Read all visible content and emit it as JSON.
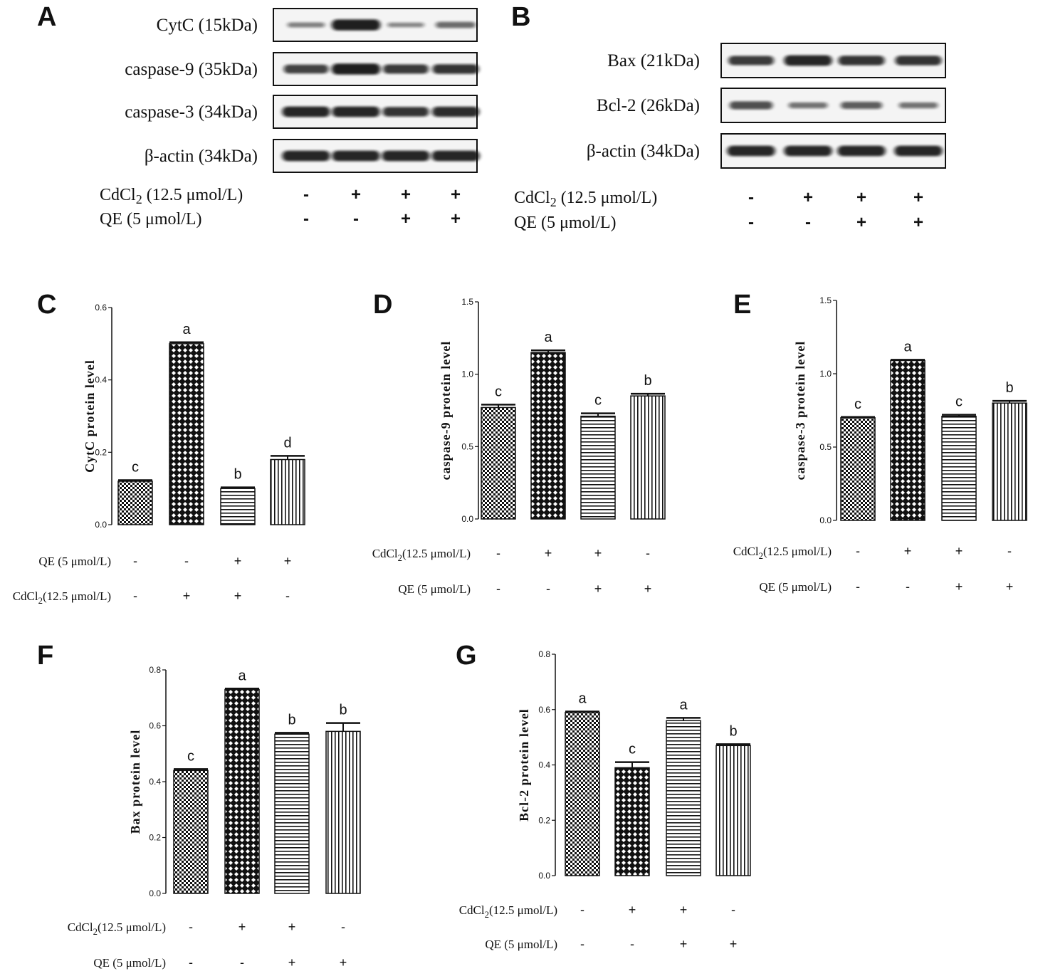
{
  "panel_a": {
    "letter": "A",
    "blots": [
      {
        "label": "CytC (15kDa)",
        "band": [
          0.25,
          0.95,
          0.2,
          0.4
        ]
      },
      {
        "label": "caspase-9 (35kDa)",
        "band": [
          0.7,
          0.95,
          0.75,
          0.8
        ]
      },
      {
        "label": "caspase-3 (34kDa)",
        "band": [
          0.9,
          0.9,
          0.8,
          0.85
        ]
      },
      {
        "label": "β-actin (34kDa)",
        "band": [
          0.9,
          0.9,
          0.9,
          0.9
        ]
      }
    ],
    "conditions": [
      {
        "label": "CdCl",
        "subscript": "2",
        "suffix": " (12.5 μmol/L)",
        "signs": [
          "-",
          "+",
          "+",
          "+"
        ]
      },
      {
        "label": "QE (5 μmol/L)",
        "subscript": "",
        "suffix": "",
        "signs": [
          "-",
          "-",
          "+",
          "+"
        ]
      }
    ]
  },
  "panel_b": {
    "letter": "B",
    "blots": [
      {
        "label": "Bax (21kDa)",
        "band": [
          0.75,
          0.9,
          0.8,
          0.8
        ]
      },
      {
        "label": "Bcl-2 (26kDa)",
        "band": [
          0.6,
          0.35,
          0.5,
          0.35
        ]
      },
      {
        "label": "β-actin (34kDa)",
        "band": [
          0.9,
          0.9,
          0.9,
          0.9
        ]
      }
    ],
    "conditions": [
      {
        "label": "CdCl",
        "subscript": "2",
        "suffix": " (12.5 μmol/L)",
        "signs": [
          "-",
          "+",
          "+",
          "+"
        ]
      },
      {
        "label": "QE (5 μmol/L)",
        "subscript": "",
        "suffix": "",
        "signs": [
          "-",
          "-",
          "+",
          "+"
        ]
      }
    ]
  },
  "chart_data": [
    {
      "panel": "C",
      "type": "bar",
      "ylabel": "CytC protein level",
      "ylim": [
        0,
        0.6
      ],
      "yticks": [
        "0.0",
        "0.2",
        "0.4",
        "0.6"
      ],
      "values": [
        0.12,
        0.5,
        0.1,
        0.18
      ],
      "errors": [
        0.003,
        0.004,
        0.003,
        0.01
      ],
      "letters": [
        "c",
        "a",
        "b",
        "d"
      ],
      "patterns": [
        "pat-checker",
        "pat-diamond",
        "pat-hlines",
        "pat-vlines"
      ],
      "conditions": [
        {
          "label": "QE (5 μmol/L)",
          "subscript": "",
          "suffix": "",
          "signs": [
            "-",
            "-",
            "+",
            "+"
          ]
        },
        {
          "label": "CdCl",
          "subscript": "2",
          "suffix": "(12.5 μmol/L)",
          "signs": [
            "-",
            "+",
            "+",
            "-"
          ]
        }
      ]
    },
    {
      "panel": "D",
      "type": "bar",
      "ylabel": "caspase-9 protein level",
      "ylim": [
        0,
        1.5
      ],
      "yticks": [
        "0.0",
        "0.5",
        "1.0",
        "1.5"
      ],
      "values": [
        0.77,
        1.15,
        0.71,
        0.85
      ],
      "errors": [
        0.02,
        0.015,
        0.02,
        0.015
      ],
      "letters": [
        "c",
        "a",
        "c",
        "b"
      ],
      "patterns": [
        "pat-checker",
        "pat-diamond",
        "pat-hlines",
        "pat-vlines"
      ],
      "conditions": [
        {
          "label": "CdCl",
          "subscript": "2",
          "suffix": "(12.5 μmol/L)",
          "signs": [
            "-",
            "+",
            "+",
            "-"
          ]
        },
        {
          "label": "QE (5 μmol/L)",
          "subscript": "",
          "suffix": "",
          "signs": [
            "-",
            "-",
            "+",
            "+"
          ]
        }
      ]
    },
    {
      "panel": "E",
      "type": "bar",
      "ylabel": "caspase-3 protein level",
      "ylim": [
        0,
        1.5
      ],
      "yticks": [
        "0.0",
        "0.5",
        "1.0",
        "1.5"
      ],
      "values": [
        0.7,
        1.09,
        0.71,
        0.8
      ],
      "errors": [
        0.005,
        0.005,
        0.01,
        0.015
      ],
      "letters": [
        "c",
        "a",
        "c",
        "b"
      ],
      "patterns": [
        "pat-checker",
        "pat-diamond",
        "pat-hlines",
        "pat-vlines"
      ],
      "conditions": [
        {
          "label": "CdCl",
          "subscript": "2",
          "suffix": "(12.5 μmol/L)",
          "signs": [
            "-",
            "+",
            "+",
            "-"
          ]
        },
        {
          "label": "QE (5 μmol/L)",
          "subscript": "",
          "suffix": "",
          "signs": [
            "-",
            "-",
            "+",
            "+"
          ]
        }
      ]
    },
    {
      "panel": "F",
      "type": "bar",
      "ylabel": "Bax protein level",
      "ylim": [
        0,
        0.8
      ],
      "yticks": [
        "0.0",
        "0.2",
        "0.4",
        "0.6",
        "0.8"
      ],
      "values": [
        0.44,
        0.73,
        0.57,
        0.58
      ],
      "errors": [
        0.005,
        0.003,
        0.005,
        0.03
      ],
      "letters": [
        "c",
        "a",
        "b",
        "b"
      ],
      "patterns": [
        "pat-checker",
        "pat-diamond",
        "pat-hlines",
        "pat-vlines"
      ],
      "conditions": [
        {
          "label": "CdCl",
          "subscript": "2",
          "suffix": "(12.5 μmol/L)",
          "signs": [
            "-",
            "+",
            "+",
            "-"
          ]
        },
        {
          "label": "QE (5 μmol/L)",
          "subscript": "",
          "suffix": "",
          "signs": [
            "-",
            "-",
            "+",
            "+"
          ]
        }
      ]
    },
    {
      "panel": "G",
      "type": "bar",
      "ylabel": "Bcl-2 protein level",
      "ylim": [
        0,
        0.8
      ],
      "yticks": [
        "0.0",
        "0.2",
        "0.4",
        "0.6",
        "0.8"
      ],
      "values": [
        0.59,
        0.39,
        0.56,
        0.47
      ],
      "errors": [
        0.003,
        0.02,
        0.01,
        0.005
      ],
      "letters": [
        "a",
        "c",
        "a",
        "b"
      ],
      "patterns": [
        "pat-checker",
        "pat-diamond",
        "pat-hlines",
        "pat-vlines"
      ],
      "conditions": [
        {
          "label": "CdCl",
          "subscript": "2",
          "suffix": "(12.5 μmol/L)",
          "signs": [
            "-",
            "+",
            "+",
            "-"
          ]
        },
        {
          "label": "QE (5 μmol/L)",
          "subscript": "",
          "suffix": "",
          "signs": [
            "-",
            "-",
            "+",
            "+"
          ]
        }
      ]
    }
  ]
}
